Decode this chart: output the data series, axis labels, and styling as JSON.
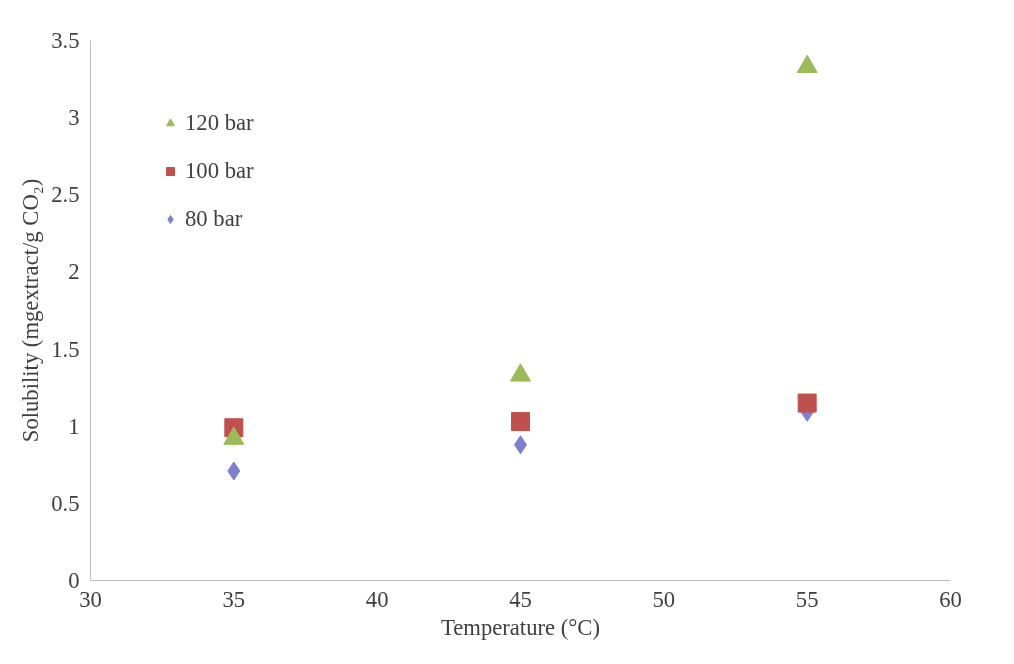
{
  "chart_data": {
    "type": "scatter",
    "xlabel": "Temperature (°C)",
    "ylabel": "Solubility (mgextract/g CO₂)",
    "x": [
      35,
      45,
      55
    ],
    "series": [
      {
        "name": "120 bar",
        "color": "#9bbb59",
        "marker": "triangle",
        "values": [
          0.92,
          1.33,
          3.33
        ]
      },
      {
        "name": "100 bar",
        "color": "#c0504d",
        "marker": "square",
        "values": [
          0.99,
          1.03,
          1.15
        ]
      },
      {
        "name": "80 bar",
        "color": "#7f7fd0",
        "marker": "diamond",
        "values": [
          0.71,
          0.88,
          1.09
        ]
      }
    ],
    "xlim": [
      30,
      60
    ],
    "xticks": [
      30,
      35,
      40,
      45,
      50,
      55,
      60
    ],
    "ylim": [
      0,
      3.5
    ],
    "yticks": [
      0,
      0.5,
      1,
      1.5,
      2,
      2.5,
      3,
      3.5
    ],
    "grid": false,
    "legend": "top left"
  }
}
